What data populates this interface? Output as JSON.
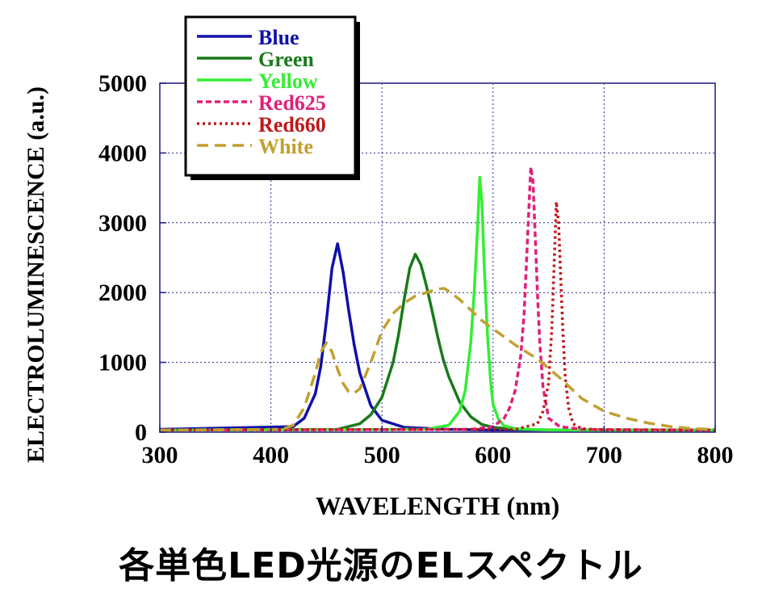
{
  "chart_data": {
    "type": "line",
    "title": "",
    "xlabel": "WAVELENGTH (nm)",
    "ylabel": "ELECTROLUMINESCENCE (a.u.)",
    "xlim": [
      300,
      800
    ],
    "ylim": [
      0,
      5000
    ],
    "xticks": [
      300,
      400,
      500,
      600,
      700,
      800
    ],
    "yticks": [
      0,
      1000,
      2000,
      3000,
      4000,
      5000
    ],
    "xtick_labels": [
      "300",
      "400",
      "500",
      "600",
      "700",
      "800"
    ],
    "ytick_labels": [
      "0",
      "1000",
      "2000",
      "3000",
      "4000",
      "5000"
    ],
    "grid": true,
    "legend_position": "top-left",
    "series": [
      {
        "name": "Blue",
        "color": "#1010a8",
        "dash": "solid",
        "x": [
          300,
          420,
          430,
          440,
          445,
          450,
          455,
          460,
          465,
          470,
          475,
          480,
          490,
          500,
          520,
          560,
          600,
          800
        ],
        "y": [
          40,
          80,
          200,
          550,
          950,
          1600,
          2350,
          2700,
          2300,
          1750,
          1250,
          850,
          380,
          170,
          70,
          40,
          30,
          30
        ]
      },
      {
        "name": "Green",
        "color": "#1a7a1a",
        "dash": "solid",
        "x": [
          300,
          460,
          480,
          490,
          500,
          510,
          515,
          520,
          525,
          530,
          535,
          540,
          545,
          550,
          555,
          560,
          570,
          580,
          590,
          600,
          620,
          660,
          800
        ],
        "y": [
          30,
          40,
          120,
          250,
          500,
          1000,
          1400,
          1900,
          2350,
          2550,
          2400,
          2100,
          1750,
          1380,
          1050,
          800,
          430,
          220,
          110,
          70,
          40,
          30,
          30
        ]
      },
      {
        "name": "Yellow",
        "color": "#33ee33",
        "dash": "solid",
        "x": [
          300,
          540,
          560,
          570,
          575,
          580,
          583,
          586,
          588,
          590,
          592,
          595,
          598,
          600,
          605,
          610,
          620,
          650,
          800
        ],
        "y": [
          30,
          40,
          100,
          300,
          600,
          1300,
          2000,
          2900,
          3650,
          3300,
          2400,
          1400,
          700,
          400,
          180,
          90,
          50,
          30,
          30
        ]
      },
      {
        "name": "Red625",
        "color": "#e0207a",
        "dash": "dash",
        "x": [
          300,
          580,
          600,
          610,
          615,
          620,
          625,
          628,
          630,
          632,
          634,
          636,
          638,
          640,
          642,
          645,
          650,
          660,
          680,
          800
        ],
        "y": [
          30,
          40,
          80,
          200,
          350,
          600,
          1100,
          1700,
          2400,
          3100,
          3800,
          3600,
          2800,
          2000,
          1300,
          650,
          200,
          80,
          40,
          30
        ]
      },
      {
        "name": "Red660",
        "color": "#c01818",
        "dash": "dot",
        "x": [
          300,
          620,
          640,
          645,
          650,
          653,
          655,
          657,
          659,
          661,
          663,
          665,
          668,
          672,
          680,
          700,
          800
        ],
        "y": [
          30,
          40,
          120,
          300,
          700,
          1500,
          2400,
          3300,
          3000,
          2200,
          1400,
          800,
          350,
          120,
          50,
          30,
          30
        ]
      },
      {
        "name": "White",
        "color": "#c0a030",
        "dash": "longdash",
        "x": [
          300,
          410,
          420,
          430,
          440,
          445,
          450,
          455,
          460,
          465,
          470,
          475,
          480,
          490,
          500,
          510,
          520,
          530,
          540,
          550,
          556,
          560,
          570,
          580,
          590,
          600,
          620,
          640,
          660,
          680,
          700,
          720,
          740,
          760,
          780,
          800
        ],
        "y": [
          30,
          40,
          100,
          350,
          850,
          1150,
          1280,
          1150,
          900,
          700,
          580,
          560,
          620,
          1000,
          1450,
          1700,
          1850,
          1950,
          2000,
          2050,
          2060,
          2020,
          1900,
          1750,
          1600,
          1480,
          1250,
          1050,
          780,
          480,
          300,
          200,
          130,
          80,
          50,
          40
        ]
      }
    ]
  },
  "page": {
    "caption": "各単色LED光源のELスペクトル"
  }
}
